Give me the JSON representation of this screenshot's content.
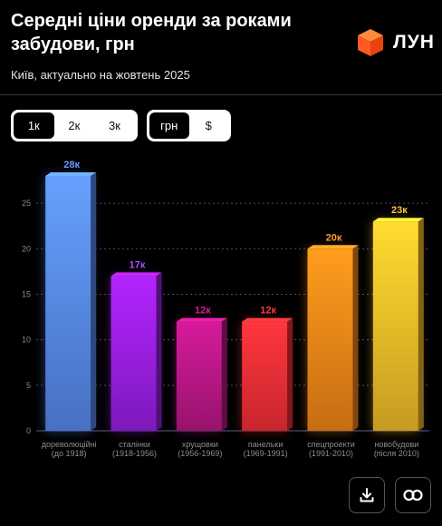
{
  "header": {
    "title": "Середні ціни оренди за роками забудови, грн",
    "subtitle": "Київ, актуально на жовтень 2025",
    "logo_text": "ЛУН"
  },
  "period_toggle": {
    "options": [
      "1к",
      "2к",
      "3к"
    ],
    "selected": "1к"
  },
  "currency_toggle": {
    "options": [
      "грн",
      "$"
    ],
    "selected": "грн"
  },
  "colors": {
    "bars": [
      "#5b8ff9",
      "#a020f0",
      "#c0188a",
      "#ff3038",
      "#ff8c1a",
      "#ffc52a"
    ],
    "labels": [
      "#6a9cff",
      "#a94dff",
      "#e0189a",
      "#ff3a40",
      "#ff9a2a",
      "#ffc640"
    ]
  },
  "chart_data": {
    "type": "bar",
    "categories": [
      [
        "дореволюційні",
        "(до 1918)"
      ],
      [
        "сталінки",
        "(1918-1956)"
      ],
      [
        "хрущовки",
        "(1956-1969)"
      ],
      [
        "панельки",
        "(1969-1991)"
      ],
      [
        "спецпроекти",
        "(1991-2010)"
      ],
      [
        "новобудови",
        "(після 2010)"
      ]
    ],
    "values": [
      28,
      17,
      12,
      12,
      20,
      23
    ],
    "data_labels": [
      "28к",
      "17к",
      "12к",
      "12к",
      "20к",
      "23к"
    ],
    "yticks": [
      0,
      5,
      10,
      15,
      20,
      25
    ],
    "ylim": [
      0,
      29
    ],
    "grid": true,
    "title": "",
    "xlabel": "",
    "ylabel": ""
  },
  "actions": {
    "download_icon": "download-icon",
    "link_icon": "link-icon"
  }
}
